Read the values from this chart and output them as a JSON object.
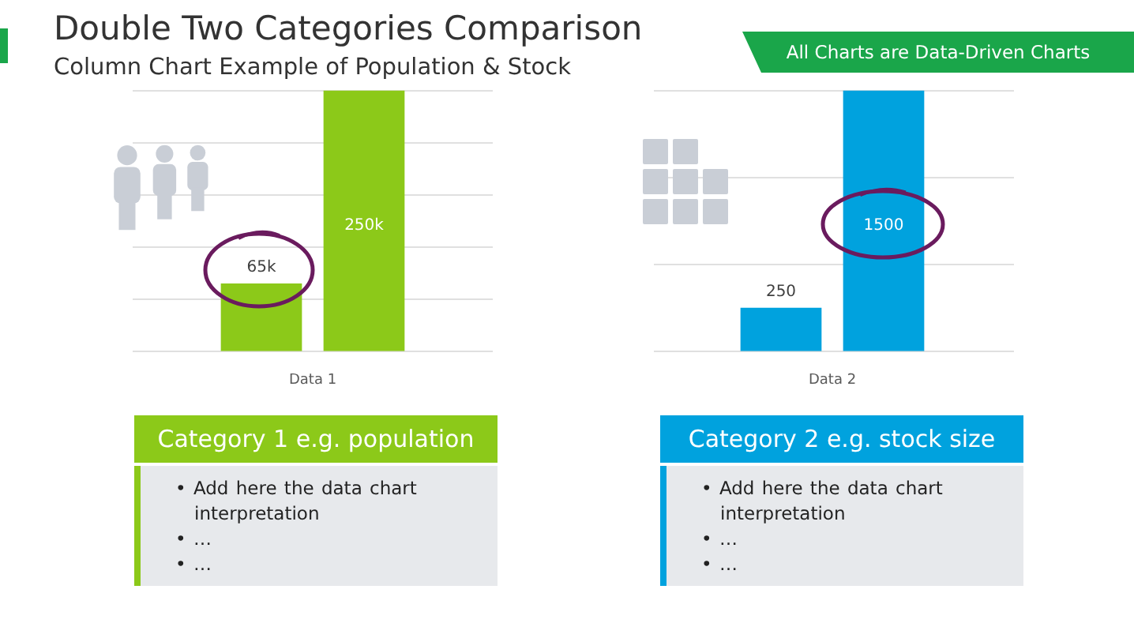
{
  "chart_data": [
    {
      "type": "bar",
      "title": "Double Two Categories Comparison",
      "subtitle": "Column Chart Example of Population & Stock",
      "categories": [
        null,
        null
      ],
      "xlabel": "Data 1",
      "values": [
        65000,
        250000
      ],
      "color": "#8cc919",
      "value_labels": [
        "65k",
        "250k"
      ],
      "ylim": [
        0,
        250000
      ],
      "yticks": [
        {
          "value": 0,
          "label": null
        },
        {
          "value": 50000,
          "label": null
        },
        {
          "value": 100000,
          "label": null
        },
        {
          "value": 150000,
          "label": null
        },
        {
          "value": 200000,
          "label": null
        },
        {
          "value": 250000,
          "label": null
        }
      ],
      "grid": "y",
      "annotations": [
        "All Charts are Data-Driven Charts",
        "Category 1 e.g. population",
        "• Add here the data chart interpretation",
        "• …",
        "• …"
      ]
    },
    {
      "type": "bar",
      "categories": [
        null,
        null
      ],
      "xlabel": "Data 2",
      "values": [
        250,
        1500
      ],
      "color": "#00a2de",
      "data_labels": true,
      "ylim": [
        0,
        1500
      ],
      "yticks": [
        {
          "value": 0,
          "label": null
        },
        {
          "value": 500,
          "label": null
        },
        {
          "value": 1000,
          "label": null
        },
        {
          "value": 1500,
          "label": null
        }
      ],
      "grid": "y",
      "annotations": [
        "Category 2 e.g. stock size",
        "• Add here the data chart interpretation",
        "• …",
        "• …"
      ]
    }
  ]
}
